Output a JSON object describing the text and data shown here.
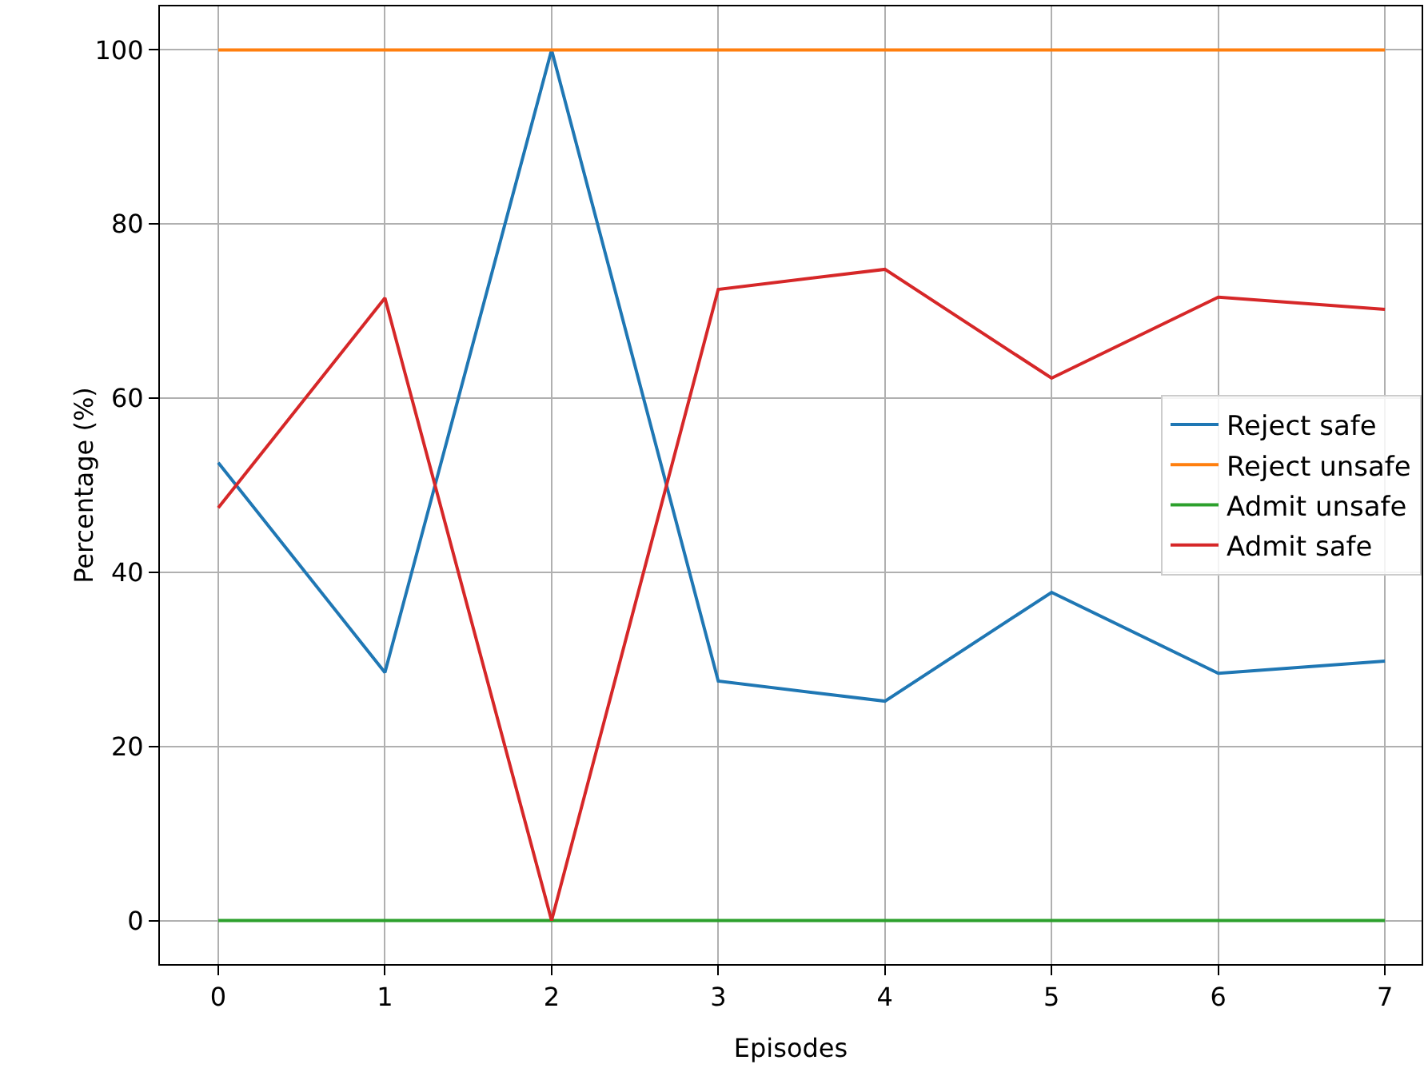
{
  "chart_data": {
    "type": "line",
    "xlabel": "Episodes",
    "ylabel": "Percentage (%)",
    "x": [
      0,
      1,
      2,
      3,
      4,
      5,
      6,
      7
    ],
    "series": [
      {
        "name": "Reject safe",
        "color": "#1f77b4",
        "values": [
          52.6,
          28.5,
          100,
          27.5,
          25.2,
          37.7,
          28.4,
          29.8
        ]
      },
      {
        "name": "Reject unsafe",
        "color": "#ff7f0e",
        "values": [
          100,
          100,
          100,
          100,
          100,
          100,
          100,
          100
        ]
      },
      {
        "name": "Admit unsafe",
        "color": "#2ca02c",
        "values": [
          0,
          0,
          0,
          0,
          0,
          0,
          0,
          0
        ]
      },
      {
        "name": "Admit safe",
        "color": "#d62728",
        "values": [
          47.4,
          71.5,
          0,
          72.5,
          74.8,
          62.3,
          71.6,
          70.2
        ]
      }
    ],
    "xlim": [
      -0.35,
      7.22
    ],
    "xticks": [
      0,
      1,
      2,
      3,
      4,
      5,
      6,
      7
    ],
    "ylim": [
      -5,
      105
    ],
    "yticks": [
      0,
      20,
      40,
      60,
      80,
      100
    ],
    "grid": true,
    "legend": "right",
    "marker": "none",
    "line_style": "solid"
  }
}
